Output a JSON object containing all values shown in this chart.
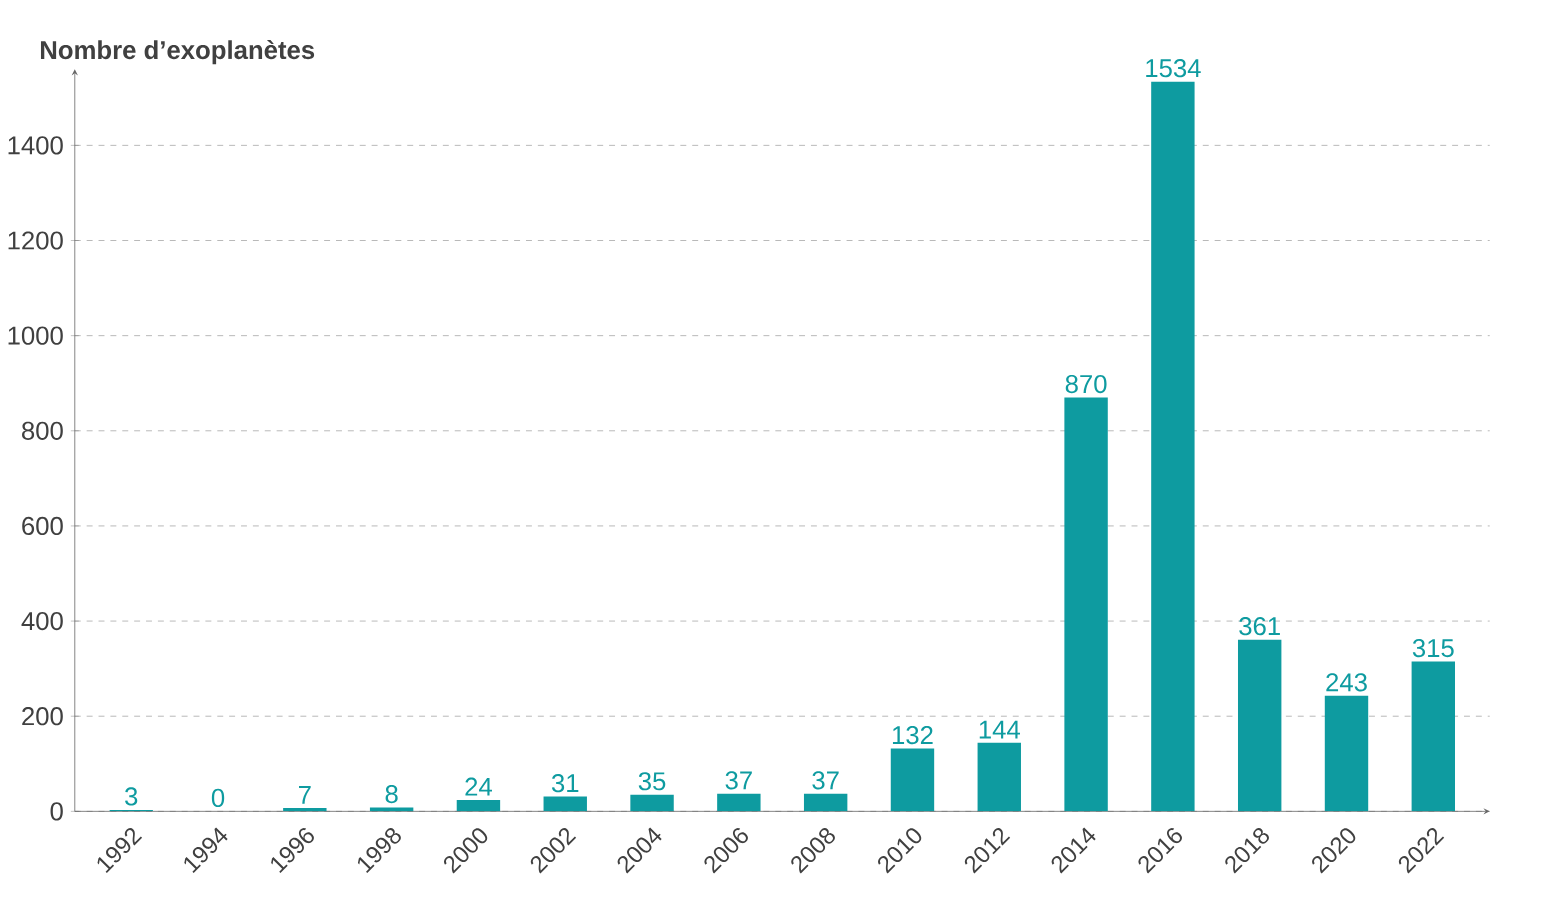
{
  "chart_data": {
    "type": "bar",
    "ylabel": "Nombre d’exoplanètes",
    "categories": [
      "1992",
      "1994",
      "1996",
      "1998",
      "2000",
      "2002",
      "2004",
      "2006",
      "2008",
      "2010",
      "2012",
      "2014",
      "2016",
      "2018",
      "2020",
      "2022"
    ],
    "values": [
      3,
      0,
      7,
      8,
      24,
      31,
      35,
      37,
      37,
      132,
      144,
      870,
      1534,
      361,
      243,
      315
    ],
    "color": "#0e9ba0",
    "ylim": [
      0,
      1560
    ],
    "yticks": [
      0,
      200,
      400,
      600,
      800,
      1000,
      1200,
      1400
    ],
    "grid": "y",
    "data_labels": true
  }
}
